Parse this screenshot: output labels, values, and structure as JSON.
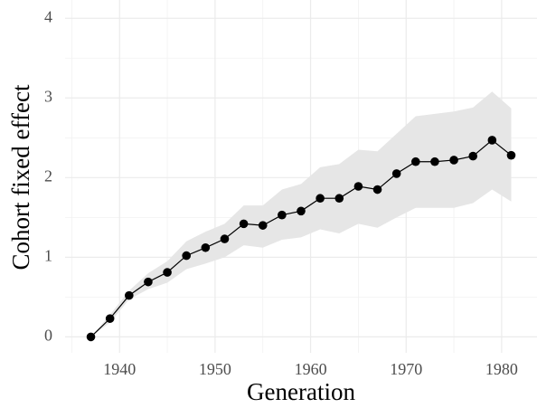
{
  "chart_data": {
    "type": "line",
    "x_label": "Generation",
    "y_label": "Cohort fixed effect",
    "x": [
      1937,
      1939,
      1941,
      1943,
      1945,
      1947,
      1949,
      1951,
      1953,
      1955,
      1957,
      1959,
      1961,
      1963,
      1965,
      1967,
      1969,
      1971,
      1973,
      1975,
      1977,
      1979,
      1981
    ],
    "series": [
      {
        "name": "Cohort fixed effect",
        "color": "#000000",
        "values": [
          0,
          0.23,
          0.52,
          0.69,
          0.81,
          1.02,
          1.12,
          1.23,
          1.42,
          1.4,
          1.53,
          1.58,
          1.74,
          1.74,
          1.89,
          1.85,
          2.05,
          2.2,
          2.2,
          2.22,
          2.27,
          2.47,
          2.28
        ],
        "lower": [
          0,
          0.18,
          0.47,
          0.6,
          0.68,
          0.85,
          0.92,
          1.0,
          1.15,
          1.12,
          1.22,
          1.25,
          1.35,
          1.3,
          1.42,
          1.37,
          1.5,
          1.62,
          1.62,
          1.62,
          1.68,
          1.85,
          1.7
        ],
        "upper": [
          0,
          0.28,
          0.58,
          0.8,
          0.95,
          1.2,
          1.32,
          1.42,
          1.65,
          1.65,
          1.85,
          1.92,
          2.13,
          2.17,
          2.35,
          2.33,
          2.55,
          2.77,
          2.8,
          2.83,
          2.88,
          3.08,
          2.87
        ]
      }
    ],
    "band_color": "#e6e6e6",
    "xlim": [
      1934.3,
      1983.7
    ],
    "xticks": [
      1940,
      1950,
      1960,
      1970,
      1980
    ],
    "minor_xticks": [
      1935,
      1945,
      1955,
      1965,
      1975
    ],
    "ylim": [
      -0.2,
      4.23
    ],
    "yticks": [
      0,
      1,
      2,
      3,
      4
    ],
    "minor_yticks": [
      0.5,
      1.5,
      2.5,
      3.5
    ],
    "grid": true
  }
}
